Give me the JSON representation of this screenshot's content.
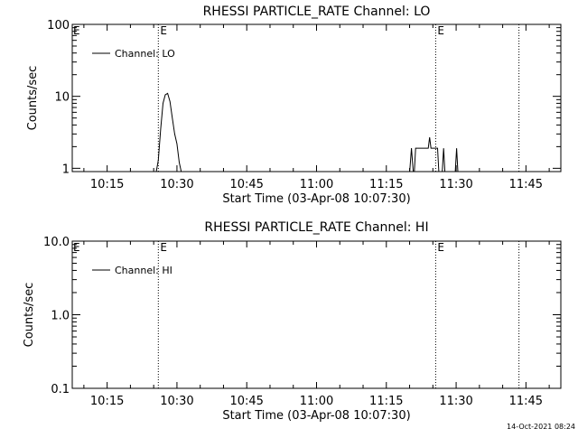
{
  "footer": {
    "timestamp": "14-Oct-2021 08:24"
  },
  "chart_data": [
    {
      "type": "line",
      "title": "RHESSI PARTICLE_RATE Channel: LO",
      "xlabel": "Start Time (03-Apr-08 10:07:30)",
      "ylabel": "Counts/sec",
      "x_unit": "minutes after 10:00 on 03-Apr-08",
      "xlim": [
        7.5,
        112.5
      ],
      "ylim": [
        0.9,
        100
      ],
      "yscale": "log",
      "x_ticks": [
        {
          "v": 15,
          "label": "10:15"
        },
        {
          "v": 30,
          "label": "10:30"
        },
        {
          "v": 45,
          "label": "10:45"
        },
        {
          "v": 60,
          "label": "11:00"
        },
        {
          "v": 75,
          "label": "11:15"
        },
        {
          "v": 90,
          "label": "11:30"
        },
        {
          "v": 105,
          "label": "11:45"
        }
      ],
      "y_ticks": [
        {
          "v": 1,
          "label": "1"
        },
        {
          "v": 10,
          "label": "10"
        },
        {
          "v": 100,
          "label": "100"
        }
      ],
      "legend": "top-left",
      "grid": false,
      "markers": [
        {
          "x": 26.0,
          "label": "E"
        },
        {
          "x": 85.6,
          "label": "E"
        },
        {
          "x": 103.5,
          "label": ""
        }
      ],
      "series": [
        {
          "name": "Channel: LO",
          "segments": [
            [
              [
                25.5,
                0.85
              ],
              [
                26.0,
                1.3
              ],
              [
                26.5,
                3.5
              ],
              [
                27.0,
                8.0
              ],
              [
                27.5,
                10.5
              ],
              [
                28.0,
                11.0
              ],
              [
                28.5,
                8.5
              ],
              [
                29.0,
                5.0
              ],
              [
                29.5,
                3.0
              ],
              [
                30.0,
                2.2
              ],
              [
                30.5,
                1.2
              ],
              [
                31.0,
                0.85
              ]
            ],
            [
              [
                80.0,
                0.85
              ],
              [
                80.4,
                1.9
              ],
              [
                80.8,
                0.85
              ]
            ],
            [
              [
                81.0,
                0.85
              ],
              [
                81.3,
                1.9
              ],
              [
                84.0,
                1.9
              ],
              [
                84.3,
                2.7
              ],
              [
                84.6,
                1.9
              ],
              [
                86.0,
                1.9
              ],
              [
                86.3,
                0.85
              ]
            ],
            [
              [
                87.0,
                0.85
              ],
              [
                87.3,
                1.9
              ],
              [
                87.6,
                0.85
              ]
            ],
            [
              [
                89.8,
                0.85
              ],
              [
                90.1,
                1.9
              ],
              [
                90.4,
                0.85
              ]
            ]
          ]
        }
      ]
    },
    {
      "type": "line",
      "title": "RHESSI PARTICLE_RATE Channel: HI",
      "xlabel": "Start Time (03-Apr-08 10:07:30)",
      "ylabel": "Counts/sec",
      "x_unit": "minutes after 10:00 on 03-Apr-08",
      "xlim": [
        7.5,
        112.5
      ],
      "ylim": [
        0.1,
        10
      ],
      "yscale": "log",
      "x_ticks": [
        {
          "v": 15,
          "label": "10:15"
        },
        {
          "v": 30,
          "label": "10:30"
        },
        {
          "v": 45,
          "label": "10:45"
        },
        {
          "v": 60,
          "label": "11:00"
        },
        {
          "v": 75,
          "label": "11:15"
        },
        {
          "v": 90,
          "label": "11:30"
        },
        {
          "v": 105,
          "label": "11:45"
        }
      ],
      "y_ticks": [
        {
          "v": 0.1,
          "label": "0.1"
        },
        {
          "v": 1,
          "label": "1.0"
        },
        {
          "v": 10,
          "label": "10.0"
        }
      ],
      "legend": "top-left",
      "grid": false,
      "markers": [
        {
          "x": 26.0,
          "label": "E"
        },
        {
          "x": 85.6,
          "label": "E"
        },
        {
          "x": 103.5,
          "label": ""
        }
      ],
      "series": [
        {
          "name": "Channel: HI",
          "segments": []
        }
      ]
    }
  ]
}
